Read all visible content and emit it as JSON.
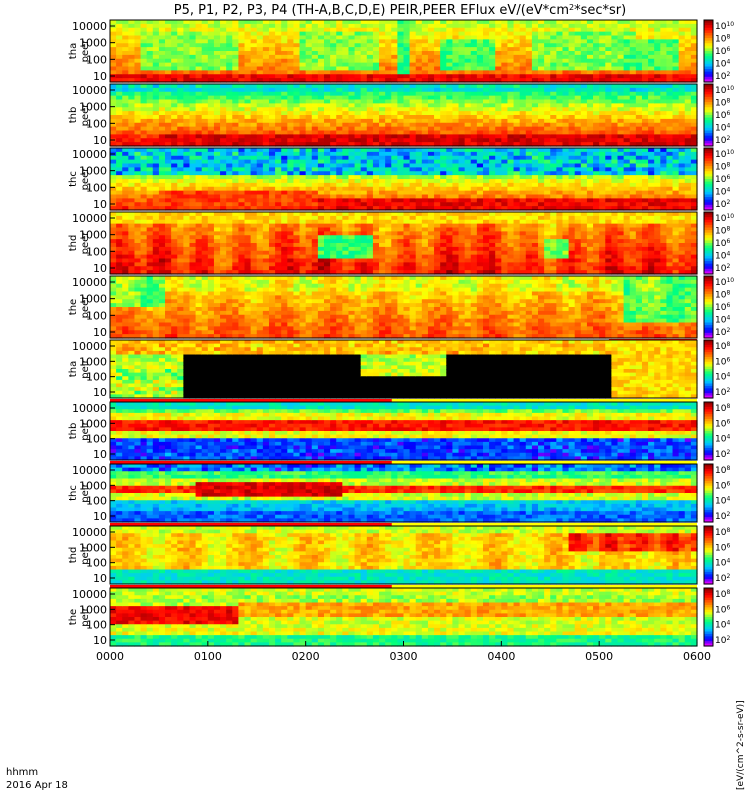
{
  "chart_data": {
    "type": "heatmap",
    "title": "P5, P1, P2, P3, P4 (TH-A,B,C,D,E) PEIR,PEER EFlux eV/(eV*cm^2*sec*sr)",
    "x_ticks": [
      "0000",
      "0100",
      "0200",
      "0300",
      "0400",
      "0500",
      "0600"
    ],
    "xlim_minutes": [
      0,
      360
    ],
    "footer_label": "hhmm",
    "footer_date": "2016 Apr 18",
    "y_scale": "log",
    "y_ticks": [
      "10",
      "100",
      "1000",
      "10000"
    ],
    "colorbar": {
      "scale": "log",
      "colors": [
        "#ff00ff",
        "#0000ff",
        "#00c8ff",
        "#00ff80",
        "#ffff00",
        "#ff8000",
        "#ff0000",
        "#800000"
      ],
      "peer_ticks": [
        "10",
        "10",
        "10",
        "10",
        "10"
      ],
      "peer_tick_exps": [
        "2",
        "4",
        "6",
        "8",
        "10"
      ],
      "peir_ticks": [
        "10",
        "10",
        "10",
        "10"
      ],
      "peir_tick_exps": [
        "2",
        "4",
        "6",
        "8"
      ],
      "unit_label": "[eV/(cm^2-s-sr-eV)]"
    },
    "panels": [
      {
        "label1": "tha",
        "label2": "peer",
        "species": "electron",
        "pattern": "tha_e"
      },
      {
        "label1": "thb",
        "label2": "peer",
        "species": "electron",
        "pattern": "thb_e"
      },
      {
        "label1": "thc",
        "label2": "peer",
        "species": "electron",
        "pattern": "thc_e"
      },
      {
        "label1": "thd",
        "label2": "peer",
        "species": "electron",
        "pattern": "thd_e"
      },
      {
        "label1": "the",
        "label2": "peer",
        "species": "electron",
        "pattern": "the_e"
      },
      {
        "label1": "tha",
        "label2": "peir",
        "species": "ion",
        "pattern": "tha_i"
      },
      {
        "label1": "thb",
        "label2": "peir",
        "species": "ion",
        "pattern": "thb_i"
      },
      {
        "label1": "thc",
        "label2": "peir",
        "species": "ion",
        "pattern": "thc_i"
      },
      {
        "label1": "thd",
        "label2": "peir",
        "species": "ion",
        "pattern": "thd_i"
      },
      {
        "label1": "the",
        "label2": "peir",
        "species": "ion",
        "pattern": "the_i"
      }
    ]
  }
}
